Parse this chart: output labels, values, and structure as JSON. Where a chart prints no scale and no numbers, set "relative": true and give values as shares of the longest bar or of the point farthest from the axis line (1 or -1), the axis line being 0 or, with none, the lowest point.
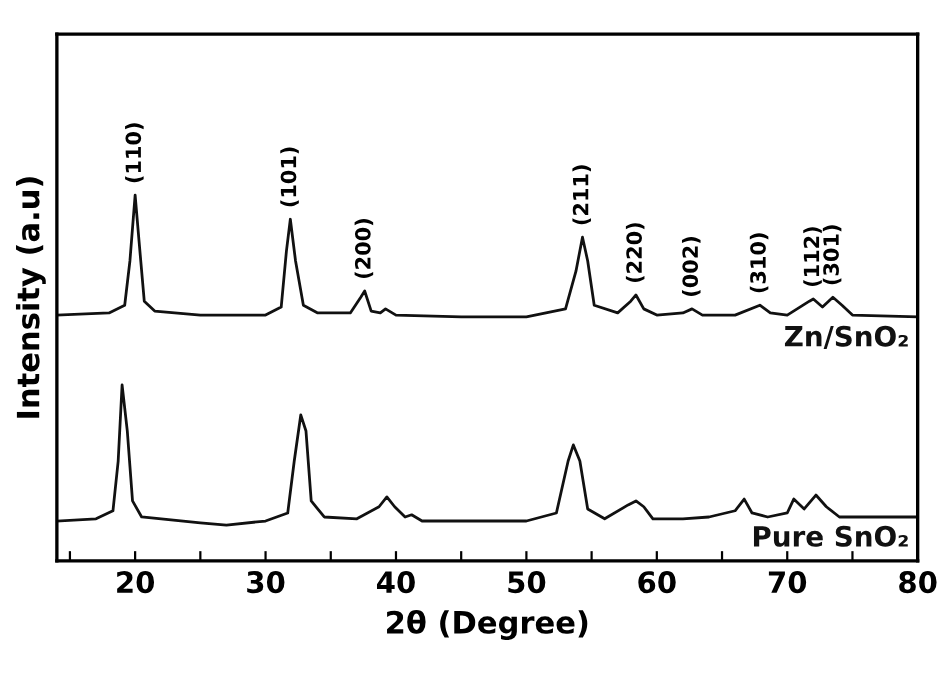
{
  "chart_data": {
    "type": "line",
    "xlabel": "2θ (Degree)",
    "ylabel": "Intensity (a.u)",
    "relative": true,
    "tick_labels": "x",
    "grid": false,
    "legend": false,
    "marker": "none",
    "line_style": "solid",
    "xlim": [
      14,
      80
    ],
    "xticks": [
      {
        "value": 15,
        "label": null
      },
      20,
      {
        "value": 25,
        "label": null
      },
      30,
      {
        "value": 35,
        "label": null
      },
      40,
      {
        "value": 45,
        "label": null
      },
      50,
      {
        "value": 55,
        "label": null
      },
      60,
      {
        "value": 65,
        "label": null
      },
      70,
      {
        "value": 75,
        "label": null
      },
      80
    ],
    "series": [
      {
        "name": "Zn/SnO₂",
        "color": "#111111",
        "x": [
          14,
          18,
          19.2,
          19.6,
          20.0,
          20.3,
          20.7,
          21.5,
          25,
          30,
          31.2,
          31.6,
          31.9,
          32.3,
          32.9,
          34,
          36.5,
          37.3,
          37.6,
          38.1,
          38.8,
          39.2,
          40,
          45,
          50,
          53,
          53.8,
          54.3,
          54.7,
          55.2,
          57,
          58.0,
          58.4,
          59,
          60,
          62,
          62.7,
          63.5,
          66,
          67.9,
          68.7,
          70,
          71.7,
          72.0,
          72.7,
          73.5,
          74.2,
          75,
          80
        ],
        "values": [
          0.672,
          0.678,
          0.699,
          0.82,
          1.0,
          0.874,
          0.71,
          0.683,
          0.672,
          0.672,
          0.694,
          0.847,
          0.934,
          0.82,
          0.699,
          0.678,
          0.678,
          0.721,
          0.738,
          0.683,
          0.678,
          0.689,
          0.672,
          0.667,
          0.667,
          0.689,
          0.792,
          0.885,
          0.82,
          0.699,
          0.678,
          0.71,
          0.727,
          0.689,
          0.672,
          0.678,
          0.689,
          0.672,
          0.672,
          0.699,
          0.678,
          0.672,
          0.71,
          0.716,
          0.694,
          0.721,
          0.699,
          0.672,
          0.667
        ]
      },
      {
        "name": "Pure SnO₂",
        "color": "#111111",
        "x": [
          14,
          17,
          18.3,
          18.7,
          19.0,
          19.4,
          19.8,
          20.5,
          25,
          27,
          30,
          31.7,
          32.2,
          32.7,
          33.1,
          33.5,
          34.5,
          37,
          38.7,
          39.3,
          39.9,
          40.7,
          41.2,
          42,
          45,
          50,
          52.3,
          53.2,
          53.6,
          54.1,
          54.7,
          56,
          57.8,
          58.4,
          59.0,
          59.7,
          62,
          64,
          66,
          66.7,
          67.3,
          68.5,
          70,
          70.5,
          71.3,
          72.2,
          73,
          74,
          80
        ],
        "values": [
          0.109,
          0.115,
          0.137,
          0.273,
          0.481,
          0.355,
          0.164,
          0.12,
          0.104,
          0.098,
          0.109,
          0.131,
          0.273,
          0.399,
          0.355,
          0.164,
          0.12,
          0.115,
          0.148,
          0.175,
          0.148,
          0.12,
          0.126,
          0.109,
          0.109,
          0.109,
          0.131,
          0.273,
          0.317,
          0.273,
          0.142,
          0.115,
          0.153,
          0.164,
          0.148,
          0.115,
          0.115,
          0.12,
          0.137,
          0.169,
          0.131,
          0.12,
          0.131,
          0.169,
          0.142,
          0.18,
          0.148,
          0.12,
          0.12
        ]
      }
    ],
    "annotations": [
      {
        "text": "(110)",
        "x": 20.0,
        "y": 1.0
      },
      {
        "text": "(101)",
        "x": 31.9,
        "y": 0.934
      },
      {
        "text": "(200)",
        "x": 37.6,
        "y": 0.738
      },
      {
        "text": "(211)",
        "x": 54.3,
        "y": 0.885
      },
      {
        "text": "(220)",
        "x": 58.4,
        "y": 0.727
      },
      {
        "text": "(002)",
        "x": 62.7,
        "y": 0.689
      },
      {
        "text": "(310)",
        "x": 67.9,
        "y": 0.699
      },
      {
        "text": "(112)",
        "x": 72.0,
        "y": 0.716
      },
      {
        "text": "(301)",
        "x": 73.5,
        "y": 0.721
      }
    ]
  }
}
